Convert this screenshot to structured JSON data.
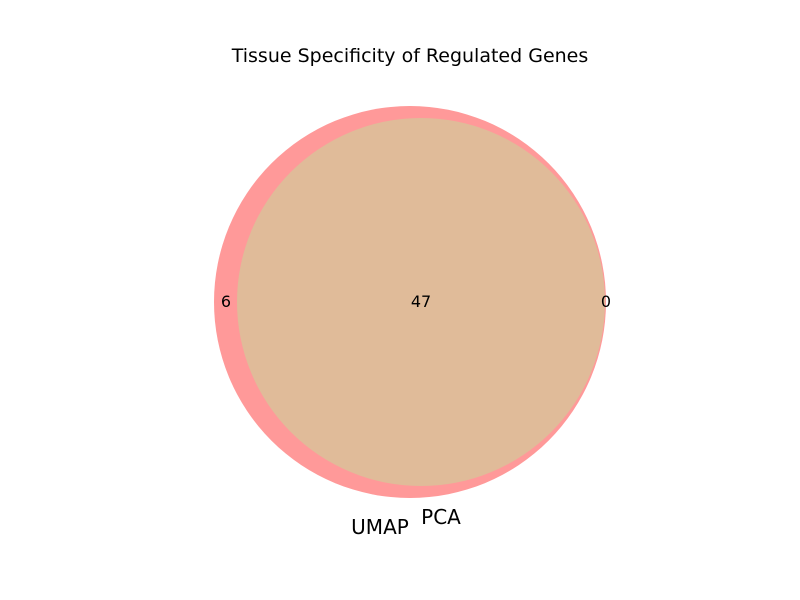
{
  "chart_data": {
    "type": "venn",
    "title": "Tissue Specificity of Regulated Genes",
    "sets": [
      {
        "name": "UMAP",
        "color": "#ff9999"
      },
      {
        "name": "PCA",
        "color": "#e0bb99"
      }
    ],
    "regions": {
      "umap_only": 6,
      "intersection": 47,
      "pca_only": 0
    },
    "colors": {
      "umap_only": "#ff9999",
      "intersection": "#e0bb99"
    }
  }
}
